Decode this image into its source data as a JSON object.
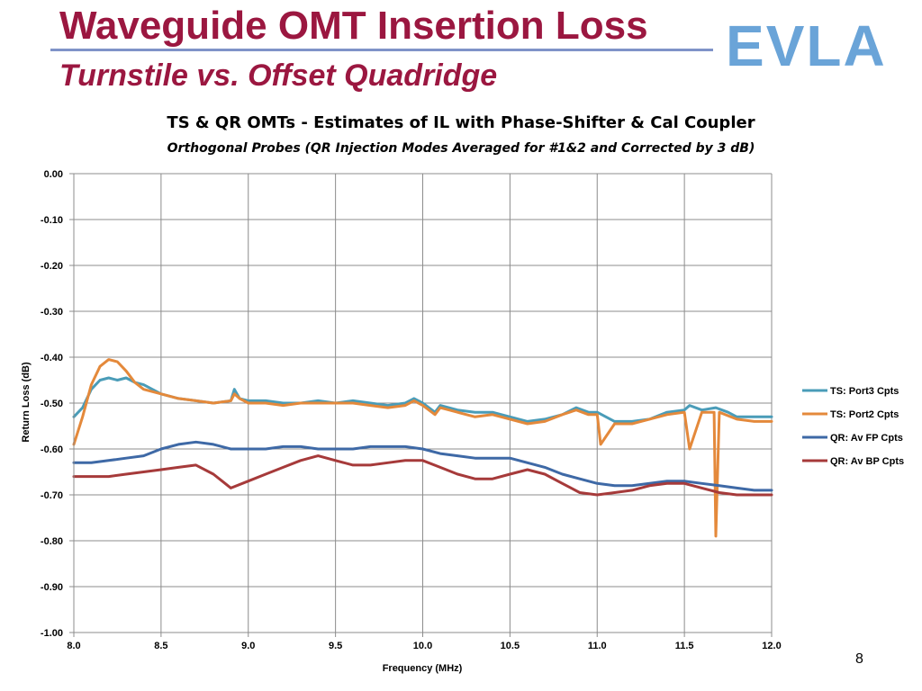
{
  "slide": {
    "title": "Waveguide OMT Insertion Loss",
    "subtitle": "Turnstile vs. Offset Quadridge",
    "logo": "EVLA",
    "page_number": "8"
  },
  "chart_data": {
    "type": "line",
    "title": "TS & QR OMTs - Estimates of IL with Phase-Shifter & Cal Coupler",
    "subtitle": "Orthogonal Probes (QR Injection Modes Averaged for #1&2 and Corrected by 3 dB)",
    "xlabel": "Frequency (MHz)",
    "ylabel": "Return Loss (dB)",
    "xlim": [
      8.0,
      12.0
    ],
    "ylim": [
      -1.0,
      0.0
    ],
    "x_ticks": [
      "8.0",
      "8.5",
      "9.0",
      "9.5",
      "10.0",
      "10.5",
      "11.0",
      "11.5",
      "12.0"
    ],
    "y_ticks": [
      "0.00",
      "-0.10",
      "-0.20",
      "-0.30",
      "-0.40",
      "-0.50",
      "-0.60",
      "-0.70",
      "-0.80",
      "-0.90",
      "-1.00"
    ],
    "grid": true,
    "legend_position": "right",
    "series": [
      {
        "name": "TS: Port3 Cpts",
        "color": "#4a9cb8",
        "x": [
          8.0,
          8.05,
          8.1,
          8.15,
          8.2,
          8.25,
          8.3,
          8.35,
          8.4,
          8.5,
          8.6,
          8.7,
          8.8,
          8.9,
          8.92,
          8.95,
          9.0,
          9.1,
          9.2,
          9.3,
          9.4,
          9.5,
          9.6,
          9.7,
          9.8,
          9.9,
          9.95,
          10.0,
          10.07,
          10.1,
          10.2,
          10.3,
          10.4,
          10.5,
          10.6,
          10.7,
          10.8,
          10.88,
          10.95,
          11.0,
          11.1,
          11.2,
          11.3,
          11.4,
          11.5,
          11.53,
          11.6,
          11.68,
          11.75,
          11.8,
          11.9,
          12.0
        ],
        "y": [
          -0.53,
          -0.51,
          -0.47,
          -0.45,
          -0.445,
          -0.45,
          -0.445,
          -0.455,
          -0.46,
          -0.48,
          -0.49,
          -0.495,
          -0.5,
          -0.495,
          -0.47,
          -0.49,
          -0.495,
          -0.495,
          -0.5,
          -0.5,
          -0.495,
          -0.5,
          -0.495,
          -0.5,
          -0.505,
          -0.5,
          -0.49,
          -0.5,
          -0.52,
          -0.505,
          -0.515,
          -0.52,
          -0.52,
          -0.53,
          -0.54,
          -0.535,
          -0.525,
          -0.51,
          -0.52,
          -0.52,
          -0.54,
          -0.54,
          -0.535,
          -0.52,
          -0.515,
          -0.505,
          -0.515,
          -0.51,
          -0.52,
          -0.53,
          -0.53,
          -0.53
        ]
      },
      {
        "name": "TS: Port2 Cpts",
        "color": "#e4893b",
        "x": [
          8.0,
          8.05,
          8.1,
          8.15,
          8.2,
          8.25,
          8.3,
          8.35,
          8.4,
          8.5,
          8.6,
          8.7,
          8.8,
          8.9,
          8.92,
          8.95,
          9.0,
          9.1,
          9.2,
          9.3,
          9.4,
          9.5,
          9.6,
          9.7,
          9.8,
          9.9,
          9.95,
          10.0,
          10.07,
          10.1,
          10.2,
          10.3,
          10.4,
          10.5,
          10.6,
          10.7,
          10.8,
          10.88,
          10.95,
          11.0,
          11.02,
          11.1,
          11.2,
          11.3,
          11.4,
          11.5,
          11.53,
          11.6,
          11.67,
          11.68,
          11.7,
          11.8,
          11.9,
          12.0
        ],
        "y": [
          -0.59,
          -0.53,
          -0.46,
          -0.42,
          -0.405,
          -0.41,
          -0.43,
          -0.455,
          -0.47,
          -0.48,
          -0.49,
          -0.495,
          -0.5,
          -0.495,
          -0.48,
          -0.49,
          -0.5,
          -0.5,
          -0.505,
          -0.5,
          -0.5,
          -0.5,
          -0.5,
          -0.505,
          -0.51,
          -0.505,
          -0.495,
          -0.505,
          -0.525,
          -0.51,
          -0.52,
          -0.53,
          -0.525,
          -0.535,
          -0.545,
          -0.54,
          -0.525,
          -0.515,
          -0.525,
          -0.525,
          -0.59,
          -0.545,
          -0.545,
          -0.535,
          -0.525,
          -0.52,
          -0.6,
          -0.52,
          -0.52,
          -0.79,
          -0.52,
          -0.535,
          -0.54,
          -0.54
        ]
      },
      {
        "name": "QR: Av FP Cpts",
        "color": "#3e69a6",
        "x": [
          8.0,
          8.1,
          8.2,
          8.3,
          8.4,
          8.5,
          8.6,
          8.7,
          8.8,
          8.9,
          9.0,
          9.1,
          9.2,
          9.3,
          9.4,
          9.5,
          9.6,
          9.7,
          9.8,
          9.9,
          10.0,
          10.1,
          10.2,
          10.3,
          10.4,
          10.5,
          10.6,
          10.7,
          10.8,
          10.9,
          11.0,
          11.1,
          11.2,
          11.3,
          11.4,
          11.5,
          11.6,
          11.7,
          11.8,
          11.9,
          12.0
        ],
        "y": [
          -0.63,
          -0.63,
          -0.625,
          -0.62,
          -0.615,
          -0.6,
          -0.59,
          -0.585,
          -0.59,
          -0.6,
          -0.6,
          -0.6,
          -0.595,
          -0.595,
          -0.6,
          -0.6,
          -0.6,
          -0.595,
          -0.595,
          -0.595,
          -0.6,
          -0.61,
          -0.615,
          -0.62,
          -0.62,
          -0.62,
          -0.63,
          -0.64,
          -0.655,
          -0.665,
          -0.675,
          -0.68,
          -0.68,
          -0.675,
          -0.67,
          -0.67,
          -0.675,
          -0.68,
          -0.685,
          -0.69,
          -0.69
        ]
      },
      {
        "name": "QR: Av BP Cpts",
        "color": "#a63a3a",
        "x": [
          8.0,
          8.1,
          8.2,
          8.3,
          8.4,
          8.5,
          8.6,
          8.7,
          8.8,
          8.85,
          8.9,
          9.0,
          9.1,
          9.2,
          9.3,
          9.4,
          9.5,
          9.6,
          9.7,
          9.8,
          9.9,
          10.0,
          10.1,
          10.2,
          10.3,
          10.4,
          10.5,
          10.6,
          10.7,
          10.8,
          10.9,
          11.0,
          11.1,
          11.2,
          11.3,
          11.4,
          11.5,
          11.6,
          11.7,
          11.8,
          11.9,
          12.0
        ],
        "y": [
          -0.66,
          -0.66,
          -0.66,
          -0.655,
          -0.65,
          -0.645,
          -0.64,
          -0.635,
          -0.655,
          -0.67,
          -0.685,
          -0.67,
          -0.655,
          -0.64,
          -0.625,
          -0.615,
          -0.625,
          -0.635,
          -0.635,
          -0.63,
          -0.625,
          -0.625,
          -0.64,
          -0.655,
          -0.665,
          -0.665,
          -0.655,
          -0.645,
          -0.655,
          -0.675,
          -0.695,
          -0.7,
          -0.695,
          -0.69,
          -0.68,
          -0.675,
          -0.675,
          -0.685,
          -0.695,
          -0.7,
          -0.7,
          -0.7
        ]
      }
    ]
  }
}
